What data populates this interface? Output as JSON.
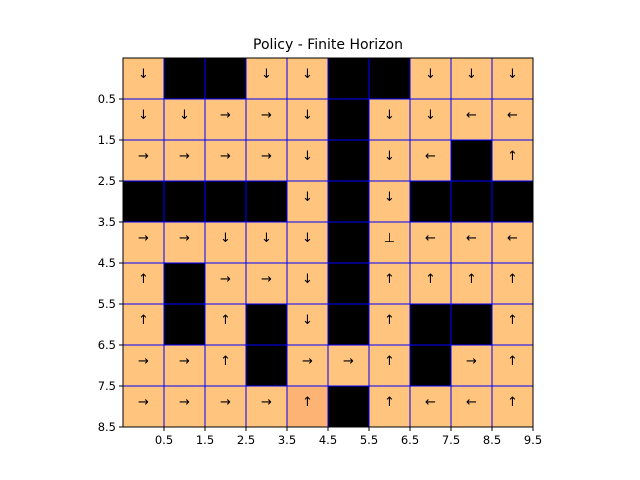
{
  "chart_data": {
    "type": "heatmap",
    "title": "Policy - Finite Horizon",
    "xlabel": "",
    "ylabel": "",
    "rows": 9,
    "cols": 10,
    "xlim": [
      -0.5,
      9.5
    ],
    "ylim": [
      8.5,
      -0.5
    ],
    "x_ticks": [
      "0.5",
      "1.5",
      "2.5",
      "3.5",
      "4.5",
      "5.5",
      "6.5",
      "7.5",
      "8.5",
      "9.5"
    ],
    "y_ticks": [
      "0.5",
      "1.5",
      "2.5",
      "3.5",
      "4.5",
      "5.5",
      "6.5",
      "7.5",
      "8.5"
    ],
    "grid": true,
    "colors": {
      "cell": "#ffc57e",
      "cell_highlight": "#fcb374",
      "wall": "#000000",
      "grid_line": "#0000ff"
    },
    "highlight_cells": [
      [
        8,
        4
      ]
    ],
    "policy": [
      [
        "↓",
        "#",
        "#",
        "↓",
        "↓",
        "#",
        "#",
        "↓",
        "↓",
        "↓"
      ],
      [
        "↓",
        "↓",
        "→",
        "→",
        "↓",
        "#",
        "↓",
        "↓",
        "←",
        "←"
      ],
      [
        "→",
        "→",
        "→",
        "→",
        "↓",
        "#",
        "↓",
        "←",
        "#",
        "↑"
      ],
      [
        "#",
        "#",
        "#",
        "#",
        "↓",
        "#",
        "↓",
        "#",
        "#",
        "#"
      ],
      [
        "→",
        "→",
        "↓",
        "↓",
        "↓",
        "#",
        "⊥",
        "←",
        "←",
        "←"
      ],
      [
        "↑",
        "#",
        "→",
        "→",
        "↓",
        "#",
        "↑",
        "↑",
        "↑",
        "↑"
      ],
      [
        "↑",
        "#",
        "↑",
        "#",
        "↓",
        "#",
        "↑",
        "#",
        "#",
        "↑"
      ],
      [
        "→",
        "→",
        "↑",
        "#",
        "→",
        "→",
        "↑",
        "#",
        "→",
        "↑"
      ],
      [
        "→",
        "→",
        "→",
        "→",
        "↑",
        "#",
        "↑",
        "←",
        "←",
        "↑"
      ]
    ]
  }
}
